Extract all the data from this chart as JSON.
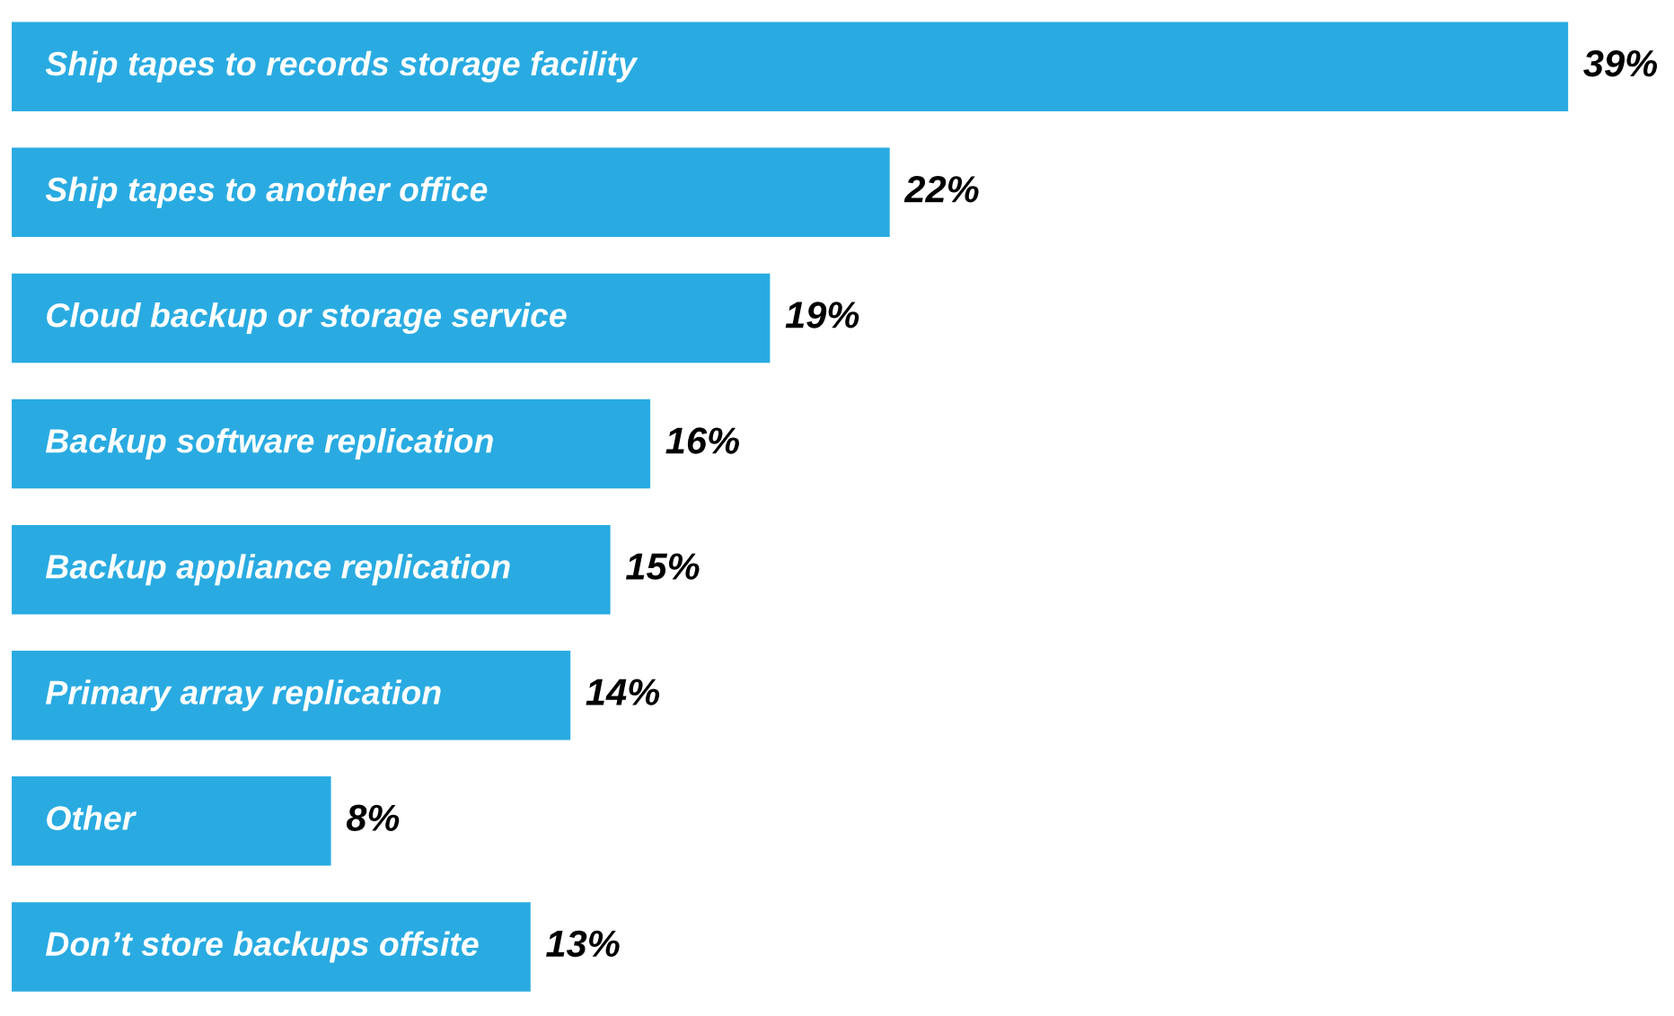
{
  "chart_data": {
    "type": "bar",
    "orientation": "horizontal",
    "categories": [
      "Ship tapes to records storage facility",
      "Ship tapes to another office",
      "Cloud backup or storage service",
      "Backup software replication",
      "Backup appliance replication",
      "Primary array replication",
      "Other",
      "Don’t store backups offsite"
    ],
    "values": [
      39,
      22,
      19,
      16,
      15,
      14,
      8,
      13
    ],
    "value_labels": [
      "39%",
      "22%",
      "19%",
      "16%",
      "15%",
      "14%",
      "8%",
      "13%"
    ],
    "color": "#29abe2"
  }
}
